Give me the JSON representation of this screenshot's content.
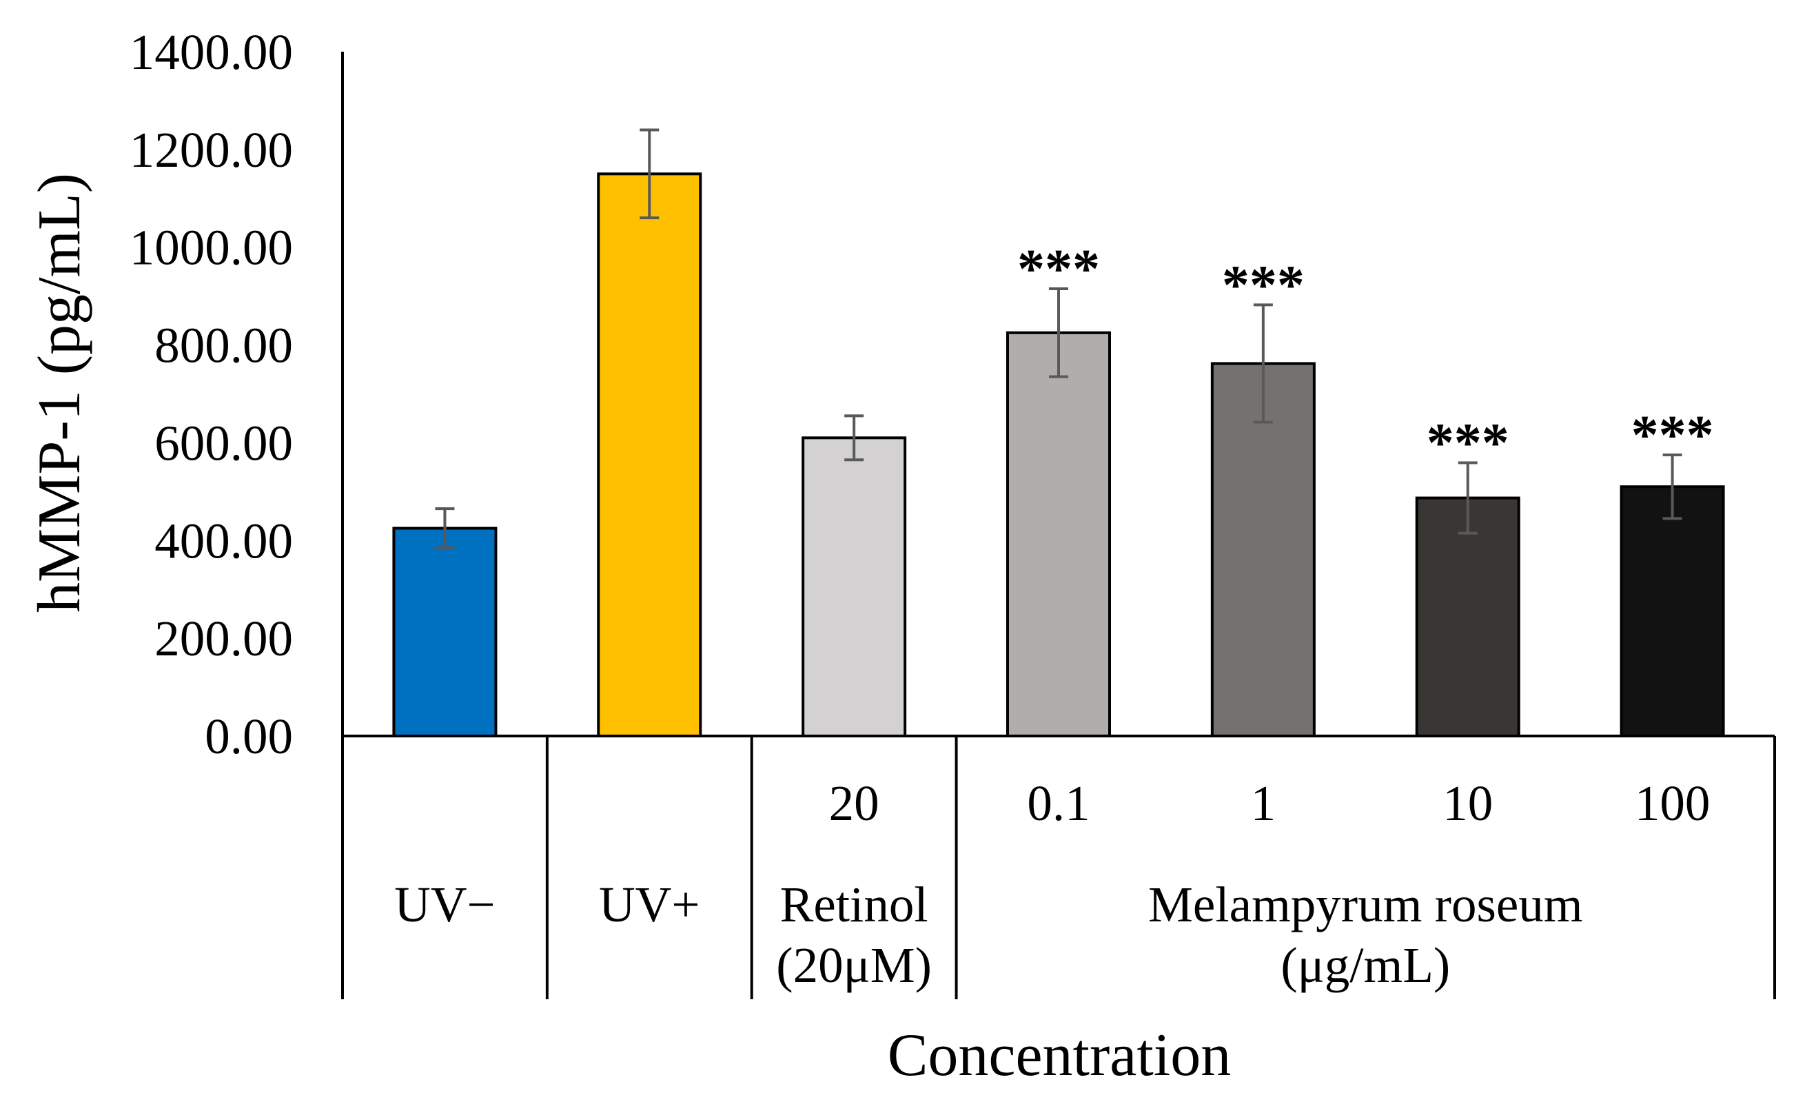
{
  "chart_data": {
    "type": "bar",
    "title": "",
    "xlabel": "Concentration",
    "ylabel": "hMMP-1 (pg/mL)",
    "ylim": [
      0,
      1400
    ],
    "yticks": [
      "0.00",
      "200.00",
      "400.00",
      "600.00",
      "800.00",
      "1000.00",
      "1200.00",
      "1400.00"
    ],
    "grid": false,
    "categories": [
      "UV−",
      "UV+",
      "20",
      "0.1",
      "1",
      "10",
      "100"
    ],
    "values": [
      425,
      1150,
      610,
      825,
      762,
      487,
      510
    ],
    "errors": [
      40,
      90,
      45,
      90,
      120,
      72,
      65
    ],
    "significance": [
      "",
      "",
      "",
      "***",
      "***",
      "***",
      "***"
    ],
    "colors": [
      "#0070c0",
      "#ffc000",
      "#d3d1d1",
      "#b0adaa",
      "#767171",
      "#3a3633",
      "#121212"
    ],
    "groups": [
      {
        "label_lines": [
          "UV−"
        ],
        "span": [
          0,
          0
        ]
      },
      {
        "label_lines": [
          "UV+"
        ],
        "span": [
          1,
          1
        ]
      },
      {
        "label_lines": [
          "Retinol",
          "(20μM)"
        ],
        "span": [
          2,
          2
        ]
      },
      {
        "label_lines": [
          "Melampyrum roseum",
          "(μg/mL)"
        ],
        "span": [
          3,
          6
        ]
      }
    ]
  }
}
